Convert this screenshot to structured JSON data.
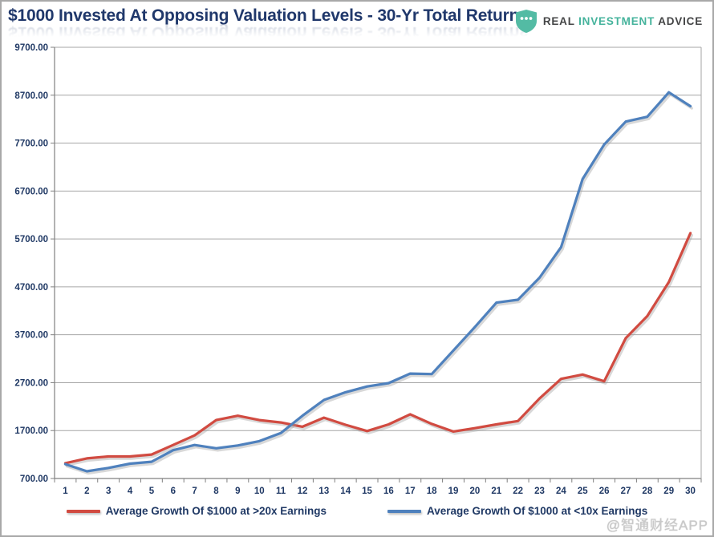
{
  "header": {
    "title": "$1000 Invested At Opposing Valuation Levels - 30-Yr Total Returns",
    "logo": {
      "word1": "REAL",
      "word2": "INVESTMENT",
      "word3": "ADVICE",
      "shield_color": "#53bba4"
    }
  },
  "watermark": "@智通财经APP",
  "chart_data": {
    "type": "line",
    "title": "$1000 Invested At Opposing Valuation Levels - 30-Yr Total Returns",
    "xlabel": "",
    "ylabel": "",
    "x": [
      1,
      2,
      3,
      4,
      5,
      6,
      7,
      8,
      9,
      10,
      11,
      12,
      13,
      14,
      15,
      16,
      17,
      18,
      19,
      20,
      21,
      22,
      23,
      24,
      25,
      26,
      27,
      28,
      29,
      30
    ],
    "series": [
      {
        "name": "Average Growth Of $1000 at >20x Earnings",
        "color": "#d14b41",
        "values": [
          1020,
          1120,
          1160,
          1160,
          1200,
          1400,
          1600,
          1920,
          2010,
          1920,
          1870,
          1780,
          1970,
          1820,
          1690,
          1830,
          2040,
          1840,
          1680,
          1750,
          1830,
          1900,
          2370,
          2780,
          2870,
          2730,
          3630,
          4090,
          4800,
          5820
        ]
      },
      {
        "name": "Average Growth Of $1000 at <10x Earnings",
        "color": "#4f81bd",
        "values": [
          1000,
          850,
          920,
          1010,
          1050,
          1290,
          1400,
          1330,
          1390,
          1480,
          1650,
          2010,
          2340,
          2500,
          2620,
          2690,
          2890,
          2880,
          3370,
          3860,
          4370,
          4430,
          4890,
          5530,
          6950,
          7670,
          8150,
          8250,
          8760,
          8470
        ]
      }
    ],
    "ylim": [
      700,
      9700
    ],
    "yticks": [
      700,
      1700,
      2700,
      3700,
      4700,
      5700,
      6700,
      7700,
      8700,
      9700
    ],
    "ytick_labels": [
      "700.00",
      "1700.00",
      "2700.00",
      "3700.00",
      "4700.00",
      "5700.00",
      "6700.00",
      "7700.00",
      "8700.00",
      "9700.00"
    ],
    "grid": "horizontal",
    "legend_position": "bottom",
    "axis_label_color": "#1f3864",
    "grid_color": "#a6a6a6",
    "axis_color": "#808080"
  }
}
